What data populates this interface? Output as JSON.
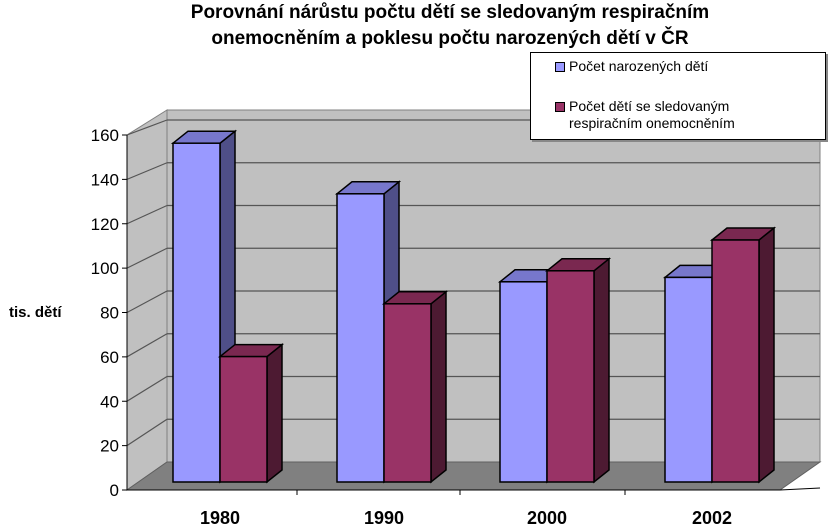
{
  "chart_data": {
    "type": "bar",
    "title": "Porovnání nárůstu počtu dětí se sledovaným respiračním onemocněním a poklesu počtu narozených dětí v ČR",
    "title_lines": [
      "Porovnání nárůstu počtu dětí se sledovaným respiračním",
      "onemocněním a poklesu počtu narozených dětí v ČR"
    ],
    "xlabel": "",
    "ylabel": "tis. dětí",
    "ylim": [
      0,
      160
    ],
    "yticks": [
      0,
      20,
      40,
      60,
      80,
      100,
      120,
      140,
      160
    ],
    "categories": [
      "1980",
      "1990",
      "2000",
      "2002"
    ],
    "series": [
      {
        "name": "Počet narozených dětí",
        "color": "#9999ff",
        "values": [
          154,
          131,
          91,
          93
        ]
      },
      {
        "name": "Počet dětí se sledovaným respiračním onemocněním",
        "name_lines": [
          "Počet dětí se sledovaným",
          "respiračním onemocněním"
        ],
        "color": "#993366",
        "values": [
          57,
          81,
          96,
          110
        ]
      }
    ],
    "grid": true,
    "legend_position": "top-right"
  }
}
